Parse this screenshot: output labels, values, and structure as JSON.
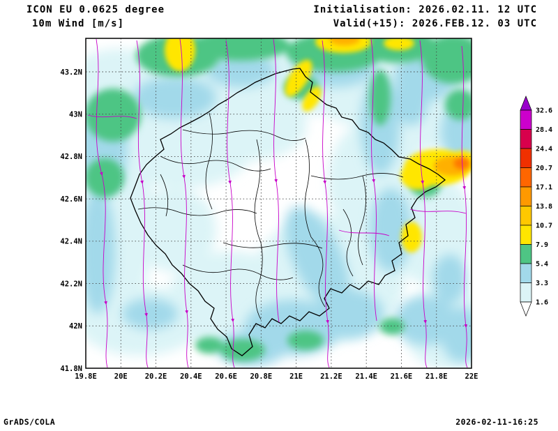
{
  "header": {
    "model": "ICON EU 0.0625 degree",
    "field": "10m Wind [m/s]",
    "init": "Initialisation: 2026.02.11. 12 UTC",
    "valid": "Valid(+15): 2026.FEB.12. 03 UTC"
  },
  "footer": {
    "left": "GrADS/COLA",
    "right": "2026-02-11-16:25"
  },
  "axes": {
    "lat_labels": [
      "43.2N",
      "43N",
      "42.8N",
      "42.6N",
      "42.4N",
      "42.2N",
      "42N",
      "41.8N"
    ],
    "lon_labels": [
      "19.8E",
      "20E",
      "20.2E",
      "20.4E",
      "20.6E",
      "20.8E",
      "21E",
      "21.2E",
      "21.4E",
      "21.6E",
      "21.8E",
      "22E"
    ]
  },
  "colorbar": {
    "levels_top_to_bottom": [
      "32.6",
      "28.4",
      "24.4",
      "20.7",
      "17.1",
      "13.8",
      "10.7",
      "7.9",
      "5.4",
      "3.3",
      "1.6"
    ],
    "band_colors_top_to_bottom": [
      "#9900CC",
      "#CC00CC",
      "#D8004C",
      "#F03000",
      "#FF6600",
      "#FF9900",
      "#FFC800",
      "#FFE600",
      "#4EC584",
      "#A2D9EA",
      "#DCF4F7",
      "#FFFFFF"
    ]
  },
  "map_colors": {
    "streamline": "#C800C8",
    "border": "#000000",
    "grid": "#444444",
    "shade_pale": "#DCF4F7",
    "shade_blue": "#A2D9EA",
    "shade_green": "#4EC584",
    "shade_yellow": "#FFE600",
    "shade_amber": "#FFB000",
    "shade_orange": "#FF7800"
  }
}
